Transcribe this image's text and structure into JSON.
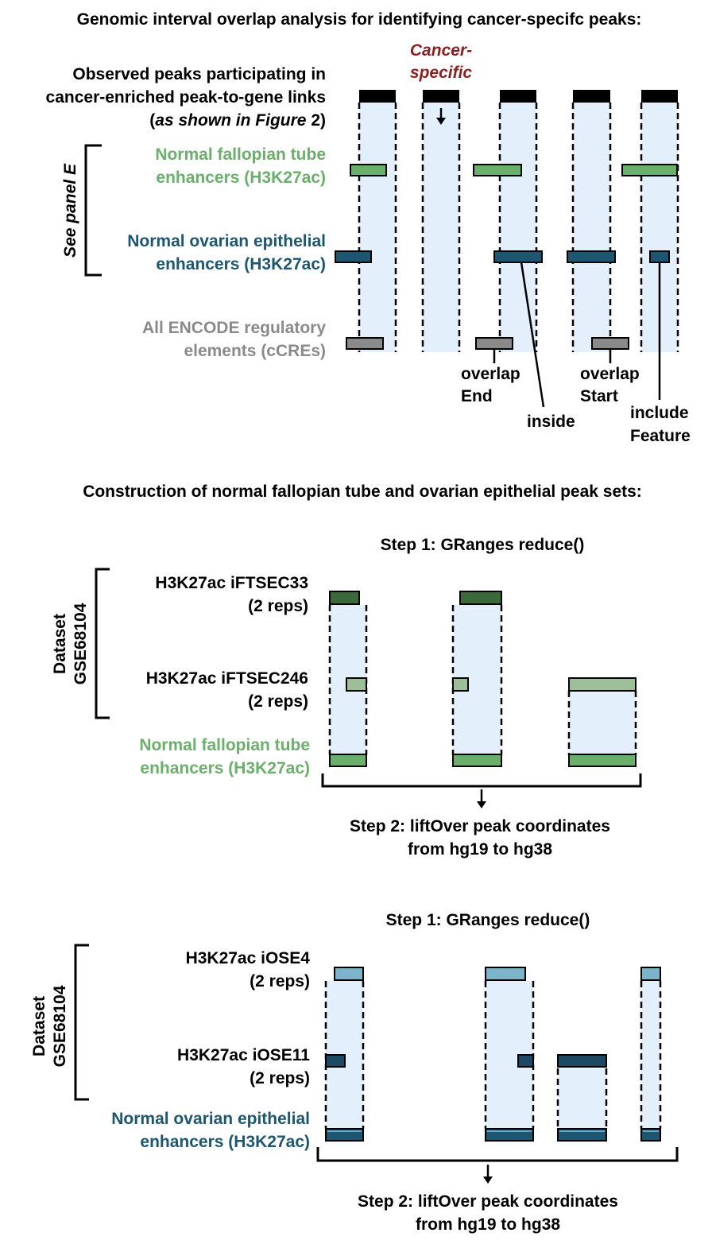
{
  "colors": {
    "black": "#000000",
    "shade": "#e3effb",
    "fallopian_green": "#6aaf6a",
    "ovarian_blue": "#1d5670",
    "encode_gray": "#8a8a8a",
    "cancer_red": "#8b2222",
    "ftsec33_dark_green": "#3b6b3a",
    "ftsec246_light_green": "#9cbf9a",
    "iose4_light_blue": "#7cb4cc",
    "iose11_dark_blue": "#1d4a62"
  },
  "panel_overlap": {
    "title": "Genomic interval overlap analysis for identifying cancer-specifc peaks:",
    "cancer_specific_line1": "Cancer-",
    "cancer_specific_line2": "specific",
    "observed_line1": "Observed peaks participating in",
    "observed_line2": "cancer-enriched peak-to-gene links",
    "observed_line3_open": "(",
    "observed_line3_italic": "as shown in Figure",
    "observed_line3_close": " 2)",
    "see_panel": "See panel E",
    "fallopian_line1": "Normal fallopian tube",
    "fallopian_line2": "enhancers (H3K27ac)",
    "ovarian_line1": "Normal ovarian epithelial",
    "ovarian_line2": "enhancers (H3K27ac)",
    "encode_line1": "All ENCODE regulatory",
    "encode_line2": "elements (cCREs)",
    "overlap_end_line1": "overlap",
    "overlap_end_line2": "End",
    "inside": "inside",
    "overlap_start_line1": "overlap",
    "overlap_start_line2": "Start",
    "include_feature_line1": "include",
    "include_feature_line2": "Feature"
  },
  "panel_construction": {
    "title": "Construction of normal fallopian tube and ovarian epithelial peak sets:",
    "fallopian": {
      "step1": "Step 1: GRanges reduce()",
      "dataset_line1": "Dataset",
      "dataset_line2": "GSE68104",
      "rep1_line1": "H3K27ac iFTSEC33",
      "rep1_line2": "(2 reps)",
      "rep2_line1": "H3K27ac iFTSEC246",
      "rep2_line2": "(2 reps)",
      "result_line1": "Normal fallopian tube",
      "result_line2": "enhancers (H3K27ac)",
      "step2_line1": "Step 2: liftOver peak coordinates",
      "step2_line2": "from hg19 to hg38"
    },
    "ovarian": {
      "step1": "Step 1: GRanges reduce()",
      "dataset_line1": "Dataset",
      "dataset_line2": "GSE68104",
      "rep1_line1": "H3K27ac iOSE4",
      "rep1_line2": "(2 reps)",
      "rep2_line1": "H3K27ac iOSE11",
      "rep2_line2": "(2 reps)",
      "result_line1": "Normal ovarian epithelial",
      "result_line2": "enhancers (H3K27ac)",
      "step2_line1": "Step 2: liftOver peak coordinates",
      "step2_line2": "from hg19 to hg38"
    }
  }
}
